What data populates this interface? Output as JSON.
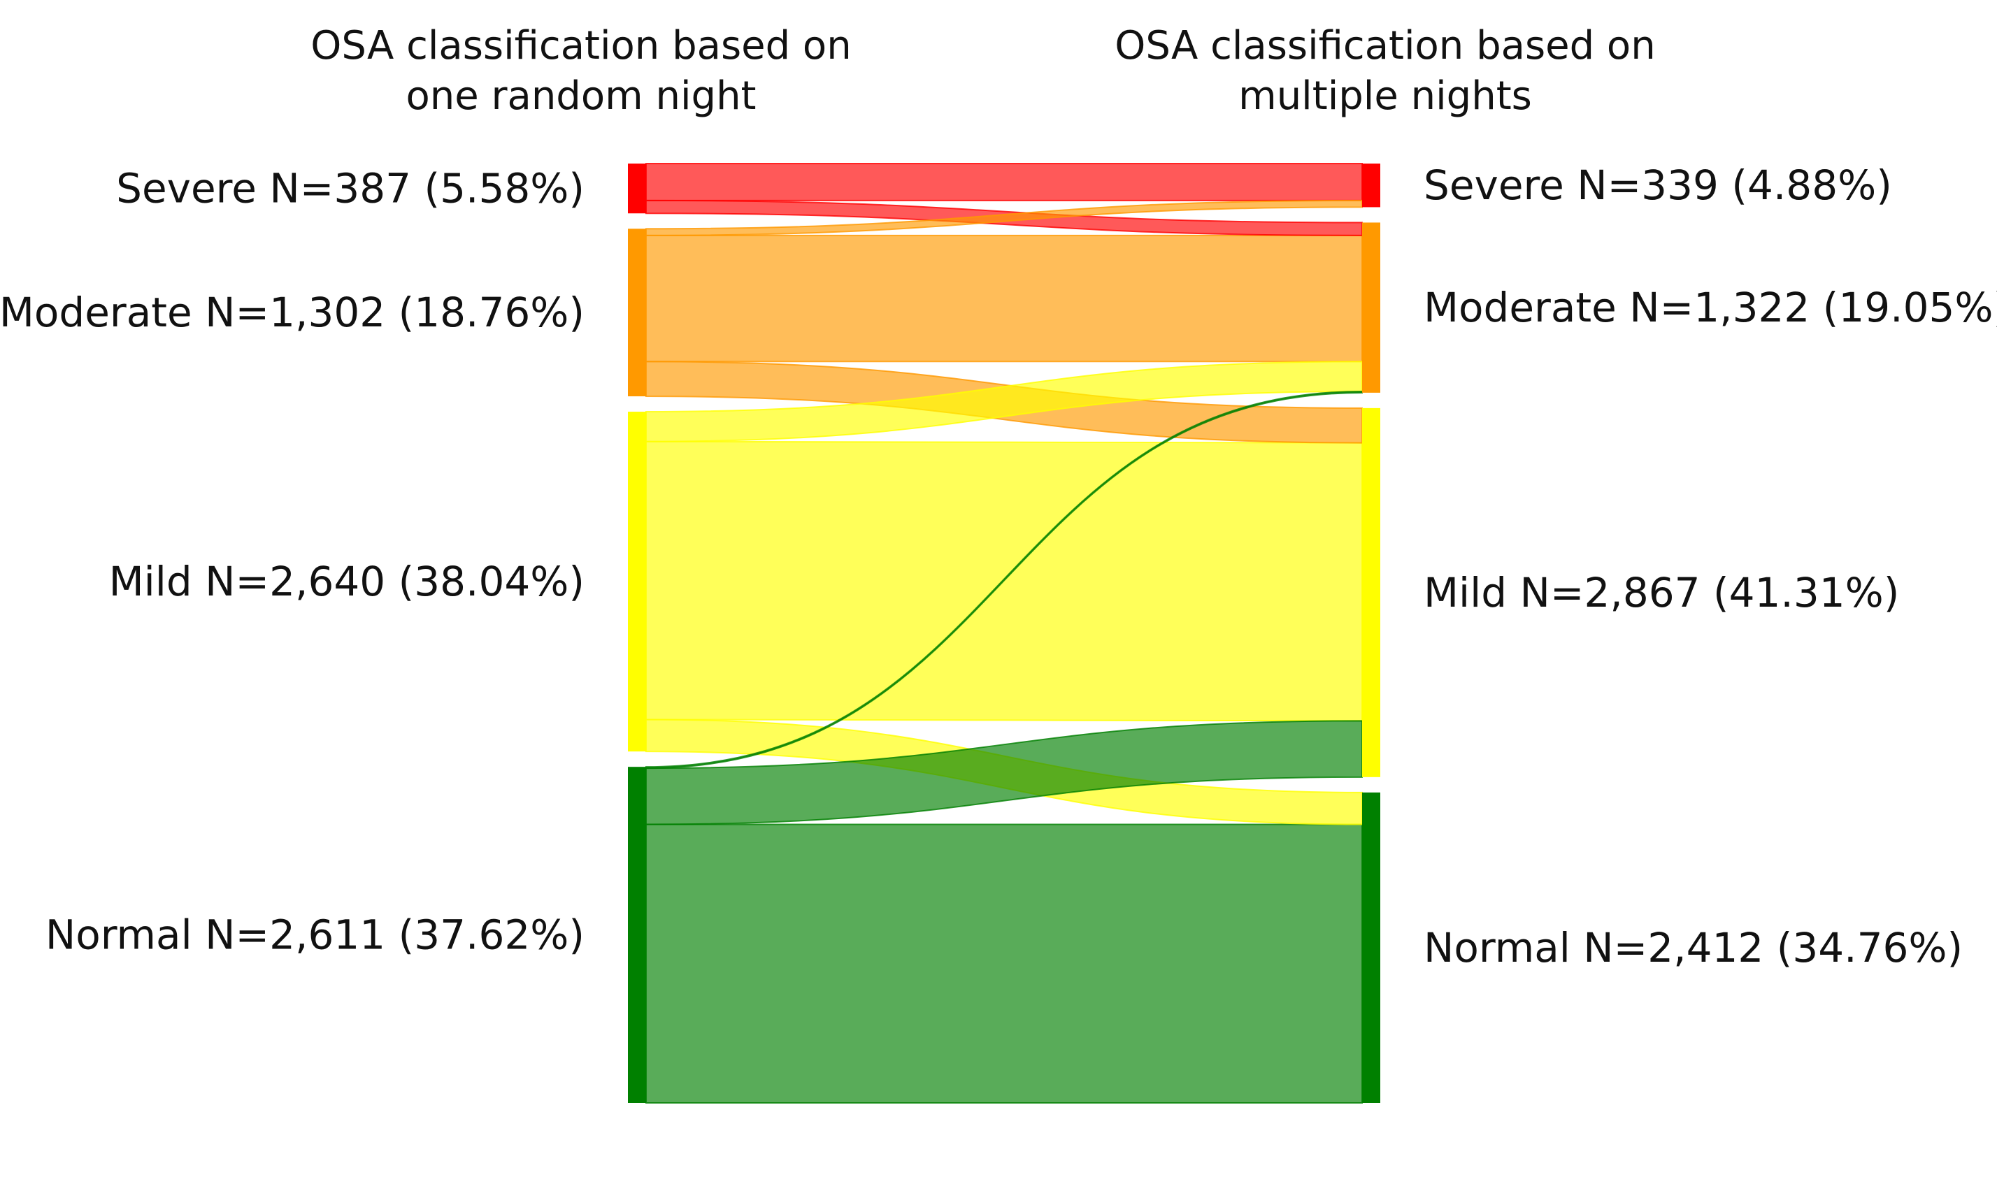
{
  "chart_data": {
    "type": "sankey",
    "title": "",
    "columns": [
      {
        "id": "left",
        "title_lines": [
          "OSA classification based on",
          "one random night"
        ]
      },
      {
        "id": "right",
        "title_lines": [
          "OSA classification based on",
          "multiple nights"
        ]
      }
    ],
    "categories": [
      "Severe",
      "Moderate",
      "Mild",
      "Normal"
    ],
    "colors": {
      "Severe": "#ff0000",
      "Moderate": "#ff9900",
      "Mild": "#ffff00",
      "Normal": "#008000"
    },
    "nodes": {
      "left": [
        {
          "name": "Severe",
          "label": "Severe N=387 (5.58%)",
          "n": 387
        },
        {
          "name": "Moderate",
          "label": "Moderate N=1,302 (18.76%)",
          "n": 1302
        },
        {
          "name": "Mild",
          "label": "Mild N=2,640 (38.04%)",
          "n": 2640
        },
        {
          "name": "Normal",
          "label": "Normal N=2,611 (37.62%)",
          "n": 2611
        }
      ],
      "right": [
        {
          "name": "Severe",
          "label": "Severe N=339 (4.88%)",
          "n": 339
        },
        {
          "name": "Moderate",
          "label": "Moderate N=1,322 (19.05%)",
          "n": 1322
        },
        {
          "name": "Mild",
          "label": "Mild N=2,867 (41.31%)",
          "n": 2867
        },
        {
          "name": "Normal",
          "label": "Normal N=2,412 (34.76%)",
          "n": 2412
        }
      ]
    },
    "flows": [
      {
        "from": "Severe",
        "to": "Severe",
        "value": 287
      },
      {
        "from": "Severe",
        "to": "Moderate",
        "value": 100
      },
      {
        "from": "Moderate",
        "to": "Severe",
        "value": 52
      },
      {
        "from": "Moderate",
        "to": "Moderate",
        "value": 980
      },
      {
        "from": "Moderate",
        "to": "Mild",
        "value": 270
      },
      {
        "from": "Mild",
        "to": "Moderate",
        "value": 232
      },
      {
        "from": "Mild",
        "to": "Mild",
        "value": 2160
      },
      {
        "from": "Mild",
        "to": "Normal",
        "value": 248
      },
      {
        "from": "Normal",
        "to": "Moderate",
        "value": 10
      },
      {
        "from": "Normal",
        "to": "Mild",
        "value": 437
      },
      {
        "from": "Normal",
        "to": "Normal",
        "value": 2164
      }
    ]
  }
}
